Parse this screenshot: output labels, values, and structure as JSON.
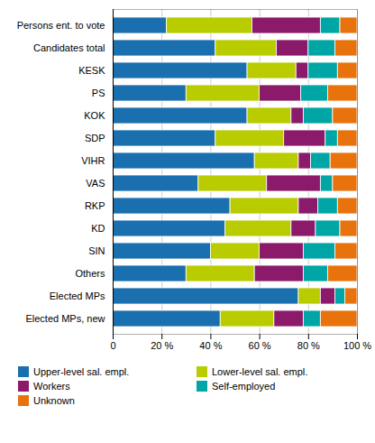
{
  "chart_data": {
    "type": "bar",
    "orientation": "horizontal",
    "stacked": true,
    "categories": [
      "Persons ent. to vote",
      "Candidates total",
      "KESK",
      "PS",
      "KOK",
      "SDP",
      "VIHR",
      "VAS",
      "RKP",
      "KD",
      "SIN",
      "Others",
      "Elected MPs",
      "Elected MPs, new"
    ],
    "series": [
      {
        "name": "Upper-level sal. empl.",
        "color": "#1a6faf",
        "values": [
          22,
          42,
          55,
          30,
          55,
          42,
          58,
          35,
          48,
          46,
          40,
          30,
          76,
          44
        ]
      },
      {
        "name": "Lower-level sal. empl.",
        "color": "#b8cc00",
        "values": [
          35,
          25,
          20,
          30,
          18,
          28,
          18,
          28,
          28,
          27,
          20,
          28,
          9,
          22
        ]
      },
      {
        "name": "Workers",
        "color": "#8b1a6b",
        "values": [
          28,
          13,
          5,
          17,
          5,
          17,
          5,
          22,
          8,
          10,
          18,
          20,
          6,
          12
        ]
      },
      {
        "name": "Self-employed",
        "color": "#00a6a6",
        "values": [
          8,
          11,
          12,
          11,
          12,
          5,
          8,
          5,
          8,
          10,
          13,
          10,
          4,
          7
        ]
      },
      {
        "name": "Unknown",
        "color": "#e8720c",
        "values": [
          7,
          9,
          8,
          12,
          10,
          8,
          11,
          10,
          8,
          7,
          9,
          12,
          5,
          15
        ]
      }
    ],
    "xlim": [
      0,
      100
    ],
    "xticks": [
      0,
      {
        "value": 20,
        "label": "20 %"
      },
      {
        "value": 40,
        "label": "40 %"
      },
      {
        "value": 60,
        "label": "60 %"
      },
      {
        "value": 80,
        "label": "80 %"
      },
      {
        "value": 100,
        "label": "100 %"
      }
    ],
    "grid": true,
    "legend": "bottom"
  }
}
